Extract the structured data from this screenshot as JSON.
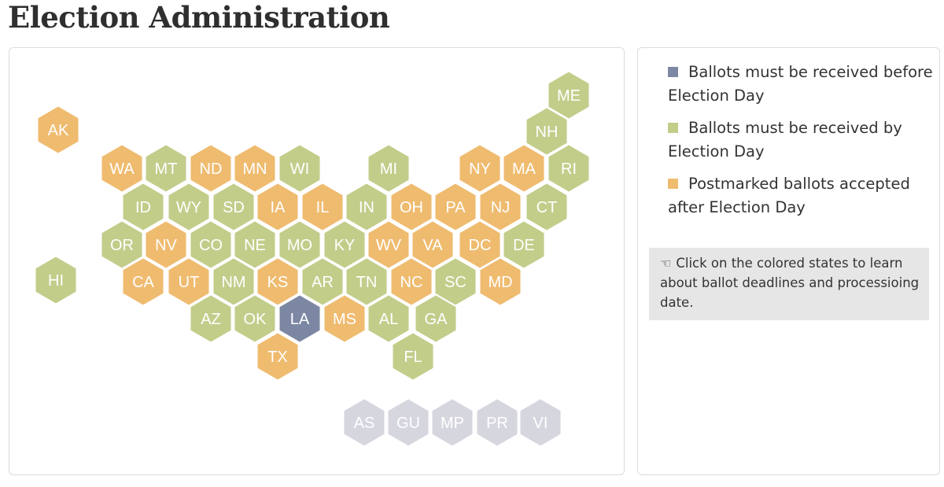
{
  "page": {
    "title": "Election Administration"
  },
  "colors": {
    "before": "#7c87a3",
    "by": "#c2cd8a",
    "postmarked": "#efbb6f",
    "territory": "#d6d6df"
  },
  "legend": [
    {
      "key": "before",
      "label": "Ballots must be received before Election Day"
    },
    {
      "key": "by",
      "label": "Ballots must be received by Election Day"
    },
    {
      "key": "postmarked",
      "label": "Postmarked ballots accepted after Election Day"
    }
  ],
  "hint": {
    "icon": "pointing-hand-icon",
    "text": "Click on the colored states to learn about ballot deadlines and processioing date."
  },
  "states": [
    {
      "abbr": "AK",
      "status": "postmarked"
    },
    {
      "abbr": "ME",
      "status": "by"
    },
    {
      "abbr": "NH",
      "status": "by"
    },
    {
      "abbr": "WA",
      "status": "postmarked"
    },
    {
      "abbr": "MT",
      "status": "by"
    },
    {
      "abbr": "ND",
      "status": "postmarked"
    },
    {
      "abbr": "MN",
      "status": "postmarked"
    },
    {
      "abbr": "WI",
      "status": "by"
    },
    {
      "abbr": "MI",
      "status": "by"
    },
    {
      "abbr": "NY",
      "status": "postmarked"
    },
    {
      "abbr": "MA",
      "status": "postmarked"
    },
    {
      "abbr": "RI",
      "status": "by"
    },
    {
      "abbr": "ID",
      "status": "by"
    },
    {
      "abbr": "WY",
      "status": "by"
    },
    {
      "abbr": "SD",
      "status": "by"
    },
    {
      "abbr": "IA",
      "status": "postmarked"
    },
    {
      "abbr": "IL",
      "status": "postmarked"
    },
    {
      "abbr": "IN",
      "status": "by"
    },
    {
      "abbr": "OH",
      "status": "postmarked"
    },
    {
      "abbr": "PA",
      "status": "postmarked"
    },
    {
      "abbr": "NJ",
      "status": "postmarked"
    },
    {
      "abbr": "CT",
      "status": "by"
    },
    {
      "abbr": "OR",
      "status": "by"
    },
    {
      "abbr": "NV",
      "status": "postmarked"
    },
    {
      "abbr": "CO",
      "status": "by"
    },
    {
      "abbr": "NE",
      "status": "by"
    },
    {
      "abbr": "MO",
      "status": "by"
    },
    {
      "abbr": "KY",
      "status": "by"
    },
    {
      "abbr": "WV",
      "status": "postmarked"
    },
    {
      "abbr": "VA",
      "status": "postmarked"
    },
    {
      "abbr": "DC",
      "status": "postmarked"
    },
    {
      "abbr": "DE",
      "status": "by"
    },
    {
      "abbr": "HI",
      "status": "by"
    },
    {
      "abbr": "CA",
      "status": "postmarked"
    },
    {
      "abbr": "UT",
      "status": "postmarked"
    },
    {
      "abbr": "NM",
      "status": "by"
    },
    {
      "abbr": "KS",
      "status": "postmarked"
    },
    {
      "abbr": "AR",
      "status": "by"
    },
    {
      "abbr": "TN",
      "status": "by"
    },
    {
      "abbr": "NC",
      "status": "postmarked"
    },
    {
      "abbr": "SC",
      "status": "by"
    },
    {
      "abbr": "MD",
      "status": "postmarked"
    },
    {
      "abbr": "AZ",
      "status": "by"
    },
    {
      "abbr": "OK",
      "status": "by"
    },
    {
      "abbr": "LA",
      "status": "before"
    },
    {
      "abbr": "MS",
      "status": "postmarked"
    },
    {
      "abbr": "AL",
      "status": "by"
    },
    {
      "abbr": "GA",
      "status": "by"
    },
    {
      "abbr": "TX",
      "status": "postmarked"
    },
    {
      "abbr": "FL",
      "status": "by"
    }
  ],
  "territories": [
    {
      "abbr": "AS",
      "status": "territory"
    },
    {
      "abbr": "GU",
      "status": "territory"
    },
    {
      "abbr": "MP",
      "status": "territory"
    },
    {
      "abbr": "PR",
      "status": "territory"
    },
    {
      "abbr": "VI",
      "status": "territory"
    }
  ]
}
